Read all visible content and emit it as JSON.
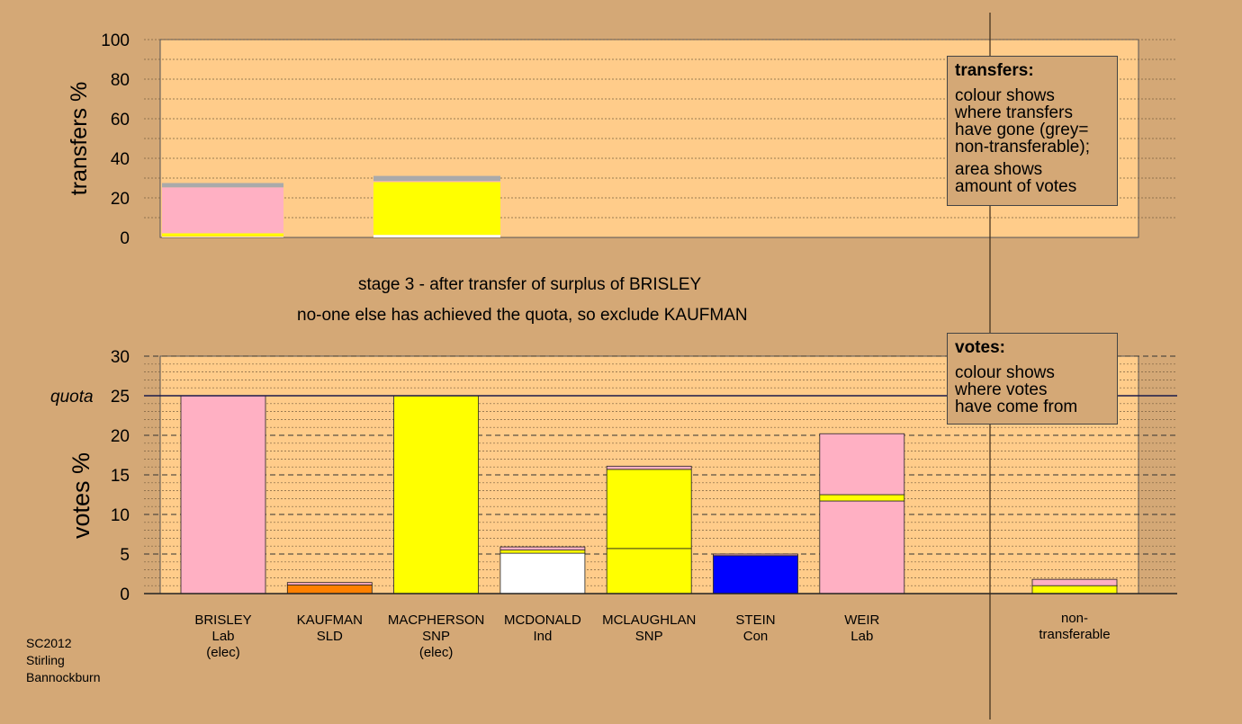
{
  "source": [
    "SC2012",
    "Stirling",
    "Bannockburn"
  ],
  "captions": {
    "stage": "stage 3 - after transfer of surplus of BRISLEY",
    "action": "no-one else has achieved the quota, so exclude KAUFMAN"
  },
  "legend_transfers": {
    "title": "transfers:",
    "lines_a": [
      "colour shows",
      "where transfers",
      "have gone (grey=",
      "non-transferable);"
    ],
    "lines_b": [
      "area shows",
      "amount of votes"
    ]
  },
  "legend_votes": {
    "title": "votes:",
    "lines": [
      "colour shows",
      "where votes",
      "have come from"
    ]
  },
  "colors": {
    "background": "#d4a876",
    "plot_bg": "#ffcc8a",
    "Lab": "#ffb0c3",
    "SNP": "#ffff00",
    "SLD": "#ff8000",
    "Ind": "#ffffff",
    "Con": "#0000ff",
    "nontransferable": "#aaaaaa"
  },
  "chart_data": [
    {
      "type": "bar",
      "stacked": true,
      "ylabel": "transfers %",
      "ylim": [
        0,
        100
      ],
      "yticks": [
        "0",
        "20",
        "40",
        "60",
        "80",
        "100"
      ],
      "bars": [
        {
          "slot": 0,
          "segments": [
            {
              "party": "Ind",
              "value": 0.4
            },
            {
              "party": "SLD",
              "value": 0.2
            },
            {
              "party": "SNP",
              "value": 1.5
            },
            {
              "party": "Lab",
              "value": 23.2
            },
            {
              "party": "nontransferable",
              "value": 2.2
            }
          ]
        },
        {
          "slot": 2,
          "segments": [
            {
              "party": "Ind",
              "value": 1.3
            },
            {
              "party": "SNP",
              "value": 26.7
            },
            {
              "party": "Lab",
              "value": 0.5
            },
            {
              "party": "nontransferable",
              "value": 2.6
            }
          ]
        }
      ]
    },
    {
      "type": "bar",
      "stacked": true,
      "ylabel": "votes %",
      "ylim": [
        0,
        30
      ],
      "yticks": [
        "0",
        "5",
        "10",
        "15",
        "20",
        "25",
        "30"
      ],
      "quota": {
        "label": "quota",
        "value": 25
      },
      "candidates": [
        {
          "name": "BRISLEY",
          "party": "Lab",
          "note": "(elec)",
          "segments": [
            {
              "party": "Lab",
              "value": 25
            }
          ]
        },
        {
          "name": "KAUFMAN",
          "party": "SLD",
          "note": "",
          "segments": [
            {
              "party": "SLD",
              "value": 1.1
            },
            {
              "party": "Lab",
              "value": 0.3
            }
          ]
        },
        {
          "name": "MACPHERSON",
          "party": "SNP",
          "note": "(elec)",
          "segments": [
            {
              "party": "SNP",
              "value": 25
            }
          ]
        },
        {
          "name": "MCDONALD",
          "party": "Ind",
          "note": "",
          "segments": [
            {
              "party": "Ind",
              "value": 5.1
            },
            {
              "party": "SNP",
              "value": 0.4
            },
            {
              "party": "Lab",
              "value": 0.4
            }
          ]
        },
        {
          "name": "MCLAUGHLAN",
          "party": "SNP",
          "note": "",
          "segments": [
            {
              "party": "SNP",
              "value": 5.7
            },
            {
              "party": "SNP",
              "value": 10.0
            },
            {
              "party": "Lab",
              "value": 0.4
            }
          ]
        },
        {
          "name": "STEIN",
          "party": "Con",
          "note": "",
          "segments": [
            {
              "party": "Con",
              "value": 4.8
            },
            {
              "party": "Lab",
              "value": 0.2
            }
          ]
        },
        {
          "name": "WEIR",
          "party": "Lab",
          "note": "",
          "segments": [
            {
              "party": "Lab",
              "value": 11.7
            },
            {
              "party": "SNP",
              "value": 0.8
            },
            {
              "party": "Lab",
              "value": 7.7
            }
          ]
        }
      ],
      "nontransferable": {
        "label_lines": [
          "non-",
          "transferable"
        ],
        "segments": [
          {
            "party": "SNP",
            "value": 1.0
          },
          {
            "party": "Lab",
            "value": 0.8
          }
        ]
      }
    }
  ]
}
